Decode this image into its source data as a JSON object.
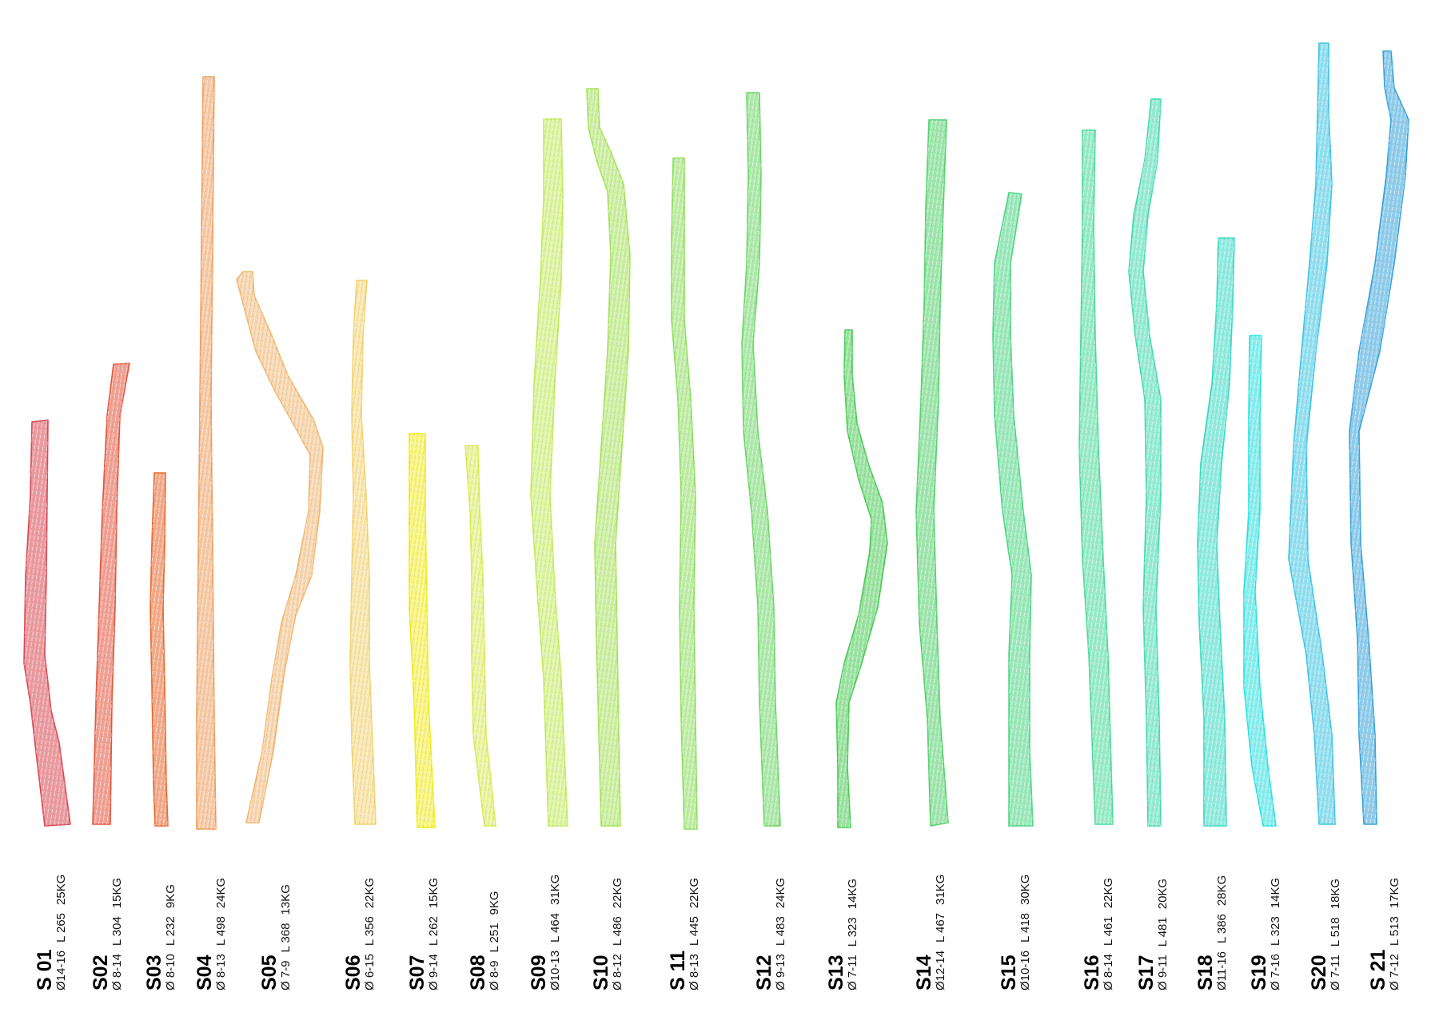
{
  "sticks": [
    {
      "id": "S 01",
      "diameter": "Ø14-16",
      "length": "L 265",
      "weight": "25KG",
      "color": "#dc4c55"
    },
    {
      "id": "S02",
      "diameter": "Ø 8-14",
      "length": "L 304",
      "weight": "15KG",
      "color": "#e5573f"
    },
    {
      "id": "S03",
      "diameter": "Ø 8-10",
      "length": "L 232",
      "weight": "9KG",
      "color": "#ea6a30"
    },
    {
      "id": "S04",
      "diameter": "Ø 8-13",
      "length": "L 498",
      "weight": "24KG",
      "color": "#f0a060"
    },
    {
      "id": "S05",
      "diameter": "Ø 7-9",
      "length": "L 368",
      "weight": "13KG",
      "color": "#f3b872"
    },
    {
      "id": "S06",
      "diameter": "Ø 6-15",
      "length": "L 356",
      "weight": "22KG",
      "color": "#f6d36e"
    },
    {
      "id": "S07",
      "diameter": "Ø 9-14",
      "length": "L 262",
      "weight": "15KG",
      "color": "#f2ec1c"
    },
    {
      "id": "S08",
      "diameter": "Ø 8-9",
      "length": "L 251",
      "weight": "9KG",
      "color": "#d8ec54"
    },
    {
      "id": "S09",
      "diameter": "Ø10-13",
      "length": "L 464",
      "weight": "31KG",
      "color": "#c3ec5a"
    },
    {
      "id": "S10",
      "diameter": "Ø 8-12",
      "length": "L 486",
      "weight": "22KG",
      "color": "#a6e45a"
    },
    {
      "id": "S 11",
      "diameter": "Ø 8-13",
      "length": "L 445",
      "weight": "22KG",
      "color": "#8fe060"
    },
    {
      "id": "S12",
      "diameter": "Ø 9-13",
      "length": "L 483",
      "weight": "24KG",
      "color": "#6fd869"
    },
    {
      "id": "S13",
      "diameter": "Ø 7-11",
      "length": "L 323",
      "weight": "14KG",
      "color": "#4ccd58"
    },
    {
      "id": "S14",
      "diameter": "Ø12-14",
      "length": "L 467",
      "weight": "31KG",
      "color": "#55d470"
    },
    {
      "id": "S15",
      "diameter": "Ø10-16",
      "length": "L 418",
      "weight": "30KG",
      "color": "#4fd886"
    },
    {
      "id": "S16",
      "diameter": "Ø 8-14",
      "length": "L 461",
      "weight": "22KG",
      "color": "#4bdc9c"
    },
    {
      "id": "S17",
      "diameter": "Ø 9-11",
      "length": "L 481",
      "weight": "20KG",
      "color": "#45dcb2"
    },
    {
      "id": "S18",
      "diameter": "Ø11-16",
      "length": "L 386",
      "weight": "28KG",
      "color": "#3cdcc6"
    },
    {
      "id": "S19",
      "diameter": "Ø 7-16",
      "length": "L 323",
      "weight": "14KG",
      "color": "#2ee2e2"
    },
    {
      "id": "S20",
      "diameter": "Ø 7-11",
      "length": "L 518",
      "weight": "18KG",
      "color": "#40c8e6"
    },
    {
      "id": "S 21",
      "diameter": "Ø 7-12",
      "length": "L 513",
      "weight": "17KG",
      "color": "#3aa6dc"
    }
  ]
}
